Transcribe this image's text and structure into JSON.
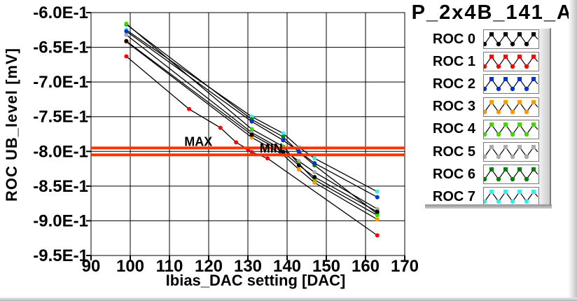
{
  "title": "P_2x4B_141_A",
  "colors": {
    "background": "#ffffff",
    "grid": "#000000",
    "series_line": "#000000",
    "reference_line": "#ff3300",
    "reference_label": "#dd4b4b"
  },
  "chart_data": {
    "type": "line",
    "title": "P_2x4B_141_A",
    "xlabel": "Ibias_DAC setting [DAC]",
    "ylabel": "ROC UB_level [mV]",
    "xlim": [
      90,
      170
    ],
    "ylim": [
      -0.95,
      -0.6
    ],
    "grid": true,
    "legend_position": "right",
    "x_ticks": [
      90,
      100,
      110,
      120,
      130,
      140,
      150,
      160,
      170
    ],
    "x_tick_labels": [
      "90",
      "100",
      "110",
      "120",
      "130",
      "140",
      "150",
      "160",
      "170"
    ],
    "y_ticks": [
      -0.6,
      -0.65,
      -0.7,
      -0.75,
      -0.8,
      -0.85,
      -0.9,
      -0.95
    ],
    "y_tick_labels": [
      "-6.0E-1",
      "-6.5E-1",
      "-7.0E-1",
      "-7.5E-1",
      "-8.0E-1",
      "-8.5E-1",
      "-9.0E-1",
      "-9.5E-1"
    ],
    "reference_lines": [
      {
        "label": "MAX",
        "value": -0.795,
        "label_x_dac": 113.8
      },
      {
        "label": "MIN",
        "value": -0.805,
        "label_x_dac": 133.0
      }
    ],
    "series": [
      {
        "name": "ROC 0",
        "color": "#000000",
        "x": [
          99,
          131,
          139,
          143,
          147,
          163
        ],
        "y": [
          -0.641,
          -0.776,
          -0.801,
          -0.82,
          -0.837,
          -0.887
        ]
      },
      {
        "name": "ROC 1",
        "color": "#ff0000",
        "x": [
          99,
          115,
          123,
          127,
          130,
          131,
          135,
          163
        ],
        "y": [
          -0.663,
          -0.739,
          -0.766,
          -0.787,
          -0.797,
          -0.801,
          -0.81,
          -0.921
        ]
      },
      {
        "name": "ROC 2",
        "color": "#0033cc",
        "x": [
          99,
          131,
          139,
          143,
          147,
          163
        ],
        "y": [
          -0.627,
          -0.757,
          -0.784,
          -0.8,
          -0.817,
          -0.866
        ]
      },
      {
        "name": "ROC 3",
        "color": "#ff9900",
        "x": [
          99,
          131,
          139,
          143,
          147,
          163
        ],
        "y": [
          -0.642,
          -0.78,
          -0.805,
          -0.826,
          -0.845,
          -0.898
        ]
      },
      {
        "name": "ROC 4",
        "color": "#44d400",
        "x": [
          99,
          131,
          139,
          143,
          147,
          163
        ],
        "y": [
          -0.616,
          -0.768,
          -0.793,
          -0.818,
          -0.841,
          -0.892
        ]
      },
      {
        "name": "ROC 5",
        "color": "#aaaaaa",
        "x": [
          99,
          131,
          139,
          143,
          147,
          163
        ],
        "y": [
          -0.632,
          -0.773,
          -0.798,
          -0.814,
          -0.83,
          -0.883
        ]
      },
      {
        "name": "ROC 6",
        "color": "#007f00",
        "x": [
          99,
          131,
          139,
          143,
          147,
          163
        ],
        "y": [
          -0.617,
          -0.754,
          -0.779,
          -0.801,
          -0.82,
          -0.89
        ]
      },
      {
        "name": "ROC 7",
        "color": "#33eeee",
        "x": [
          99,
          131,
          139,
          143,
          147,
          163
        ],
        "y": [
          -0.625,
          -0.75,
          -0.774,
          -0.794,
          -0.81,
          -0.858
        ]
      }
    ]
  },
  "legend": {
    "items": [
      {
        "label": "ROC 0",
        "color": "#000000"
      },
      {
        "label": "ROC 1",
        "color": "#ff0000"
      },
      {
        "label": "ROC 2",
        "color": "#0033cc"
      },
      {
        "label": "ROC 3",
        "color": "#ff9900"
      },
      {
        "label": "ROC 4",
        "color": "#44d400"
      },
      {
        "label": "ROC 5",
        "color": "#aaaaaa"
      },
      {
        "label": "ROC 6",
        "color": "#007f00"
      },
      {
        "label": "ROC 7",
        "color": "#33eeee"
      }
    ]
  }
}
